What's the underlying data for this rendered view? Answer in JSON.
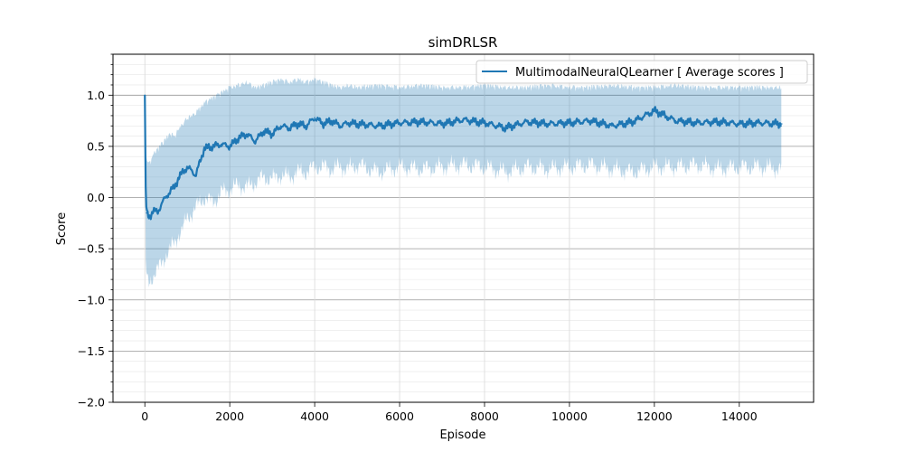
{
  "chart_data": {
    "type": "line",
    "title": "simDRLSR",
    "xlabel": "Episode",
    "ylabel": "Score",
    "xlim": [
      -750,
      15750
    ],
    "ylim": [
      -2.0,
      1.4
    ],
    "xticks": [
      0,
      2000,
      4000,
      6000,
      8000,
      10000,
      12000,
      14000
    ],
    "xtick_labels": [
      "0",
      "2000",
      "4000",
      "6000",
      "8000",
      "10000",
      "12000",
      "14000"
    ],
    "yticks": [
      -2.0,
      -1.5,
      -1.0,
      -0.5,
      0.0,
      0.5,
      1.0
    ],
    "ytick_labels": [
      "−2.0",
      "−1.5",
      "−1.0",
      "−0.5",
      "0.0",
      "0.5",
      "1.0"
    ],
    "grid": true,
    "legend_position": "top-right",
    "colors": {
      "line": "#1f77b4",
      "band": "#1f77b4"
    },
    "series": [
      {
        "name": "MultimodalNeuralQLearner [ Average scores ]",
        "x": [
          0,
          20,
          40,
          100,
          200,
          300,
          400,
          500,
          600,
          700,
          800,
          900,
          1000,
          1200,
          1400,
          1600,
          1800,
          2000,
          2200,
          2400,
          2600,
          2800,
          3000,
          3200,
          3400,
          3600,
          3800,
          4000,
          4200,
          4400,
          4600,
          4800,
          5000,
          5500,
          6000,
          6500,
          7000,
          7500,
          8000,
          8500,
          9000,
          9500,
          10000,
          10500,
          11000,
          11500,
          12000,
          12500,
          13000,
          13500,
          14000,
          14500,
          15000
        ],
        "y": [
          1.0,
          0.1,
          -0.15,
          -0.2,
          -0.12,
          -0.15,
          -0.05,
          0.0,
          0.07,
          0.1,
          0.2,
          0.25,
          0.3,
          0.22,
          0.48,
          0.5,
          0.52,
          0.5,
          0.58,
          0.62,
          0.55,
          0.65,
          0.62,
          0.7,
          0.68,
          0.72,
          0.7,
          0.78,
          0.72,
          0.75,
          0.7,
          0.73,
          0.72,
          0.7,
          0.73,
          0.74,
          0.72,
          0.76,
          0.73,
          0.68,
          0.74,
          0.72,
          0.73,
          0.75,
          0.7,
          0.74,
          0.85,
          0.75,
          0.73,
          0.74,
          0.72,
          0.73,
          0.72
        ],
        "lower": [
          1.0,
          -0.6,
          -0.8,
          -0.85,
          -0.75,
          -0.7,
          -0.65,
          -0.55,
          -0.5,
          -0.45,
          -0.35,
          -0.3,
          -0.2,
          -0.1,
          0.0,
          -0.05,
          0.05,
          0.08,
          0.12,
          0.1,
          0.15,
          0.2,
          0.18,
          0.22,
          0.2,
          0.25,
          0.25,
          0.3,
          0.3,
          0.28,
          0.3,
          0.28,
          0.32,
          0.25,
          0.3,
          0.28,
          0.3,
          0.32,
          0.3,
          0.25,
          0.3,
          0.28,
          0.3,
          0.32,
          0.28,
          0.25,
          0.3,
          0.3,
          0.32,
          0.28,
          0.3,
          0.3,
          0.28
        ],
        "upper": [
          1.0,
          0.5,
          0.4,
          0.35,
          0.45,
          0.5,
          0.55,
          0.6,
          0.65,
          0.62,
          0.7,
          0.75,
          0.8,
          0.85,
          0.95,
          1.0,
          1.05,
          1.1,
          1.12,
          1.15,
          1.1,
          1.12,
          1.15,
          1.18,
          1.15,
          1.18,
          1.15,
          1.18,
          1.15,
          1.12,
          1.1,
          1.12,
          1.1,
          1.12,
          1.1,
          1.12,
          1.1,
          1.1,
          1.12,
          1.1,
          1.1,
          1.12,
          1.1,
          1.1,
          1.12,
          1.1,
          1.1,
          1.12,
          1.1,
          1.1,
          1.1,
          1.1,
          1.1
        ]
      }
    ]
  }
}
